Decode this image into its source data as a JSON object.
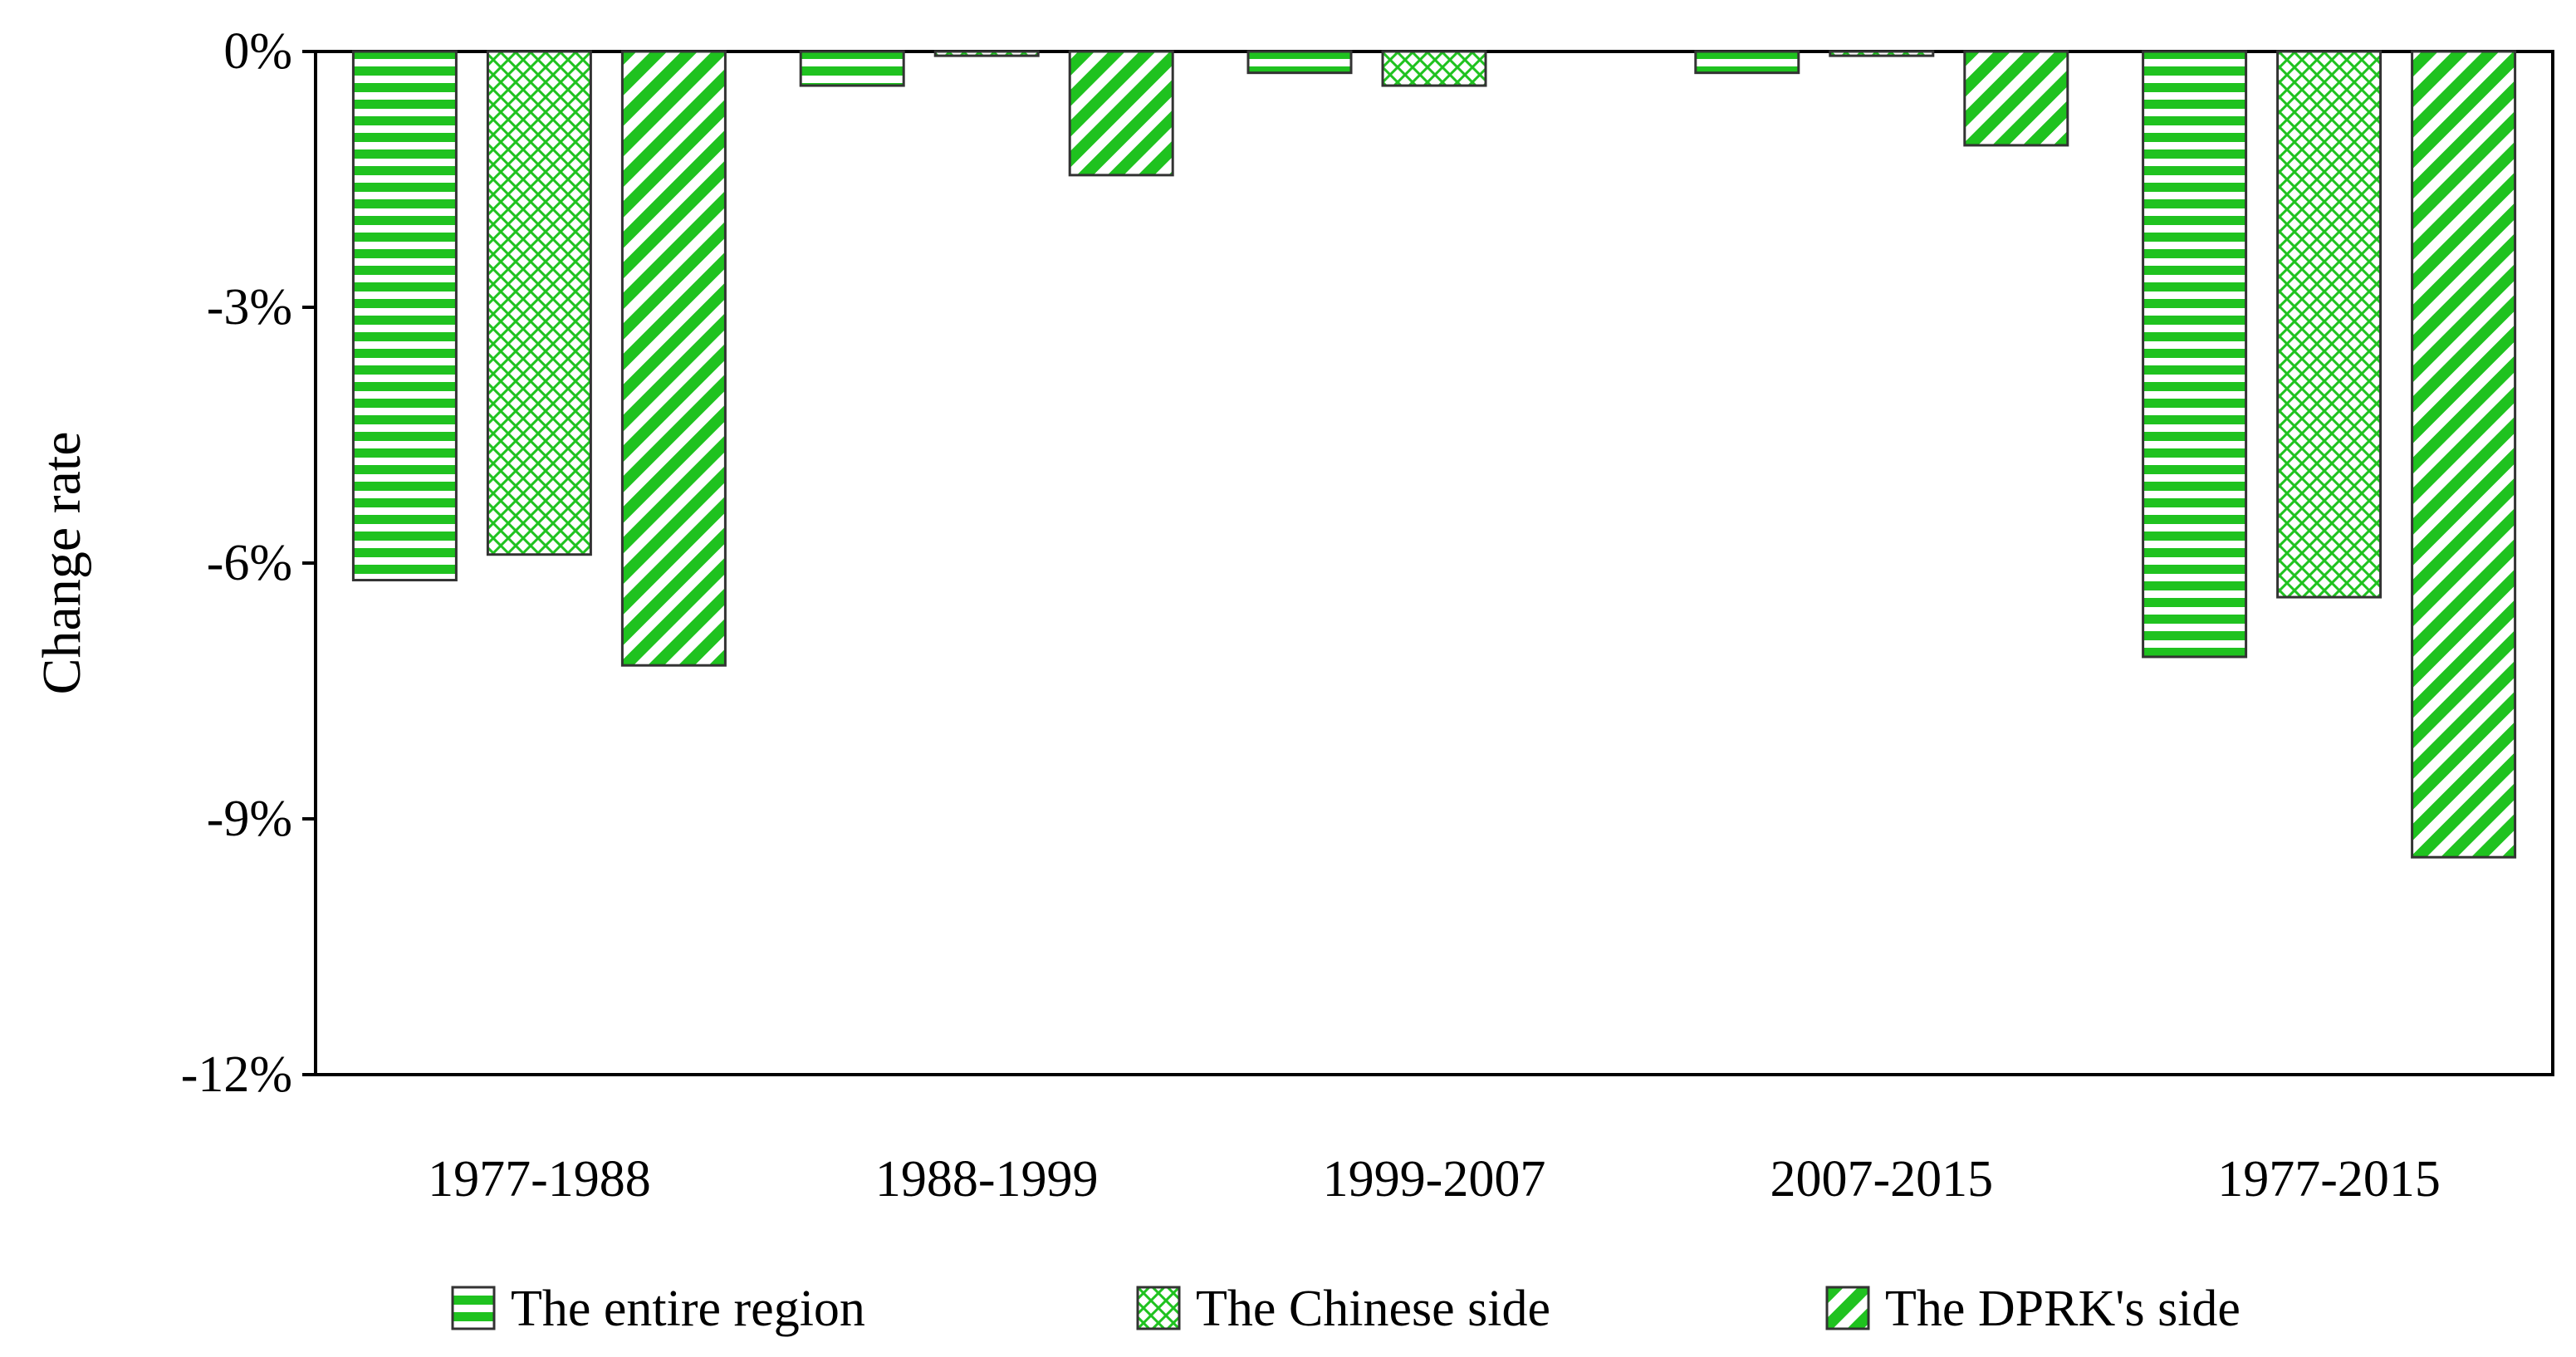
{
  "chart_data": {
    "type": "bar",
    "ylabel": "Change rate",
    "categories": [
      "1977-1988",
      "1988-1999",
      "1999-2007",
      "2007-2015",
      "1977-2015"
    ],
    "ylim": [
      -12,
      0
    ],
    "yticks": [
      0,
      -3,
      -6,
      -9,
      -12
    ],
    "ytick_labels": [
      "0%",
      "-3%",
      "-6%",
      "-9%",
      "-12%"
    ],
    "value_unit": "%",
    "series": [
      {
        "name": "The entire region",
        "pattern": "horizontal-stripes",
        "color": "#1fc21f",
        "values": [
          -6.2,
          -0.4,
          -0.25,
          -0.25,
          -7.1
        ]
      },
      {
        "name": "The Chinese side",
        "pattern": "crosshatch",
        "color": "#1fc21f",
        "values": [
          -5.9,
          -0.05,
          -0.4,
          -0.05,
          -6.4
        ]
      },
      {
        "name": "The DPRK's side",
        "pattern": "diagonal-stripes",
        "color": "#1fc21f",
        "values": [
          -7.2,
          -1.45,
          0,
          -1.1,
          -9.45
        ]
      }
    ],
    "legend_position": "bottom",
    "grid": false
  }
}
